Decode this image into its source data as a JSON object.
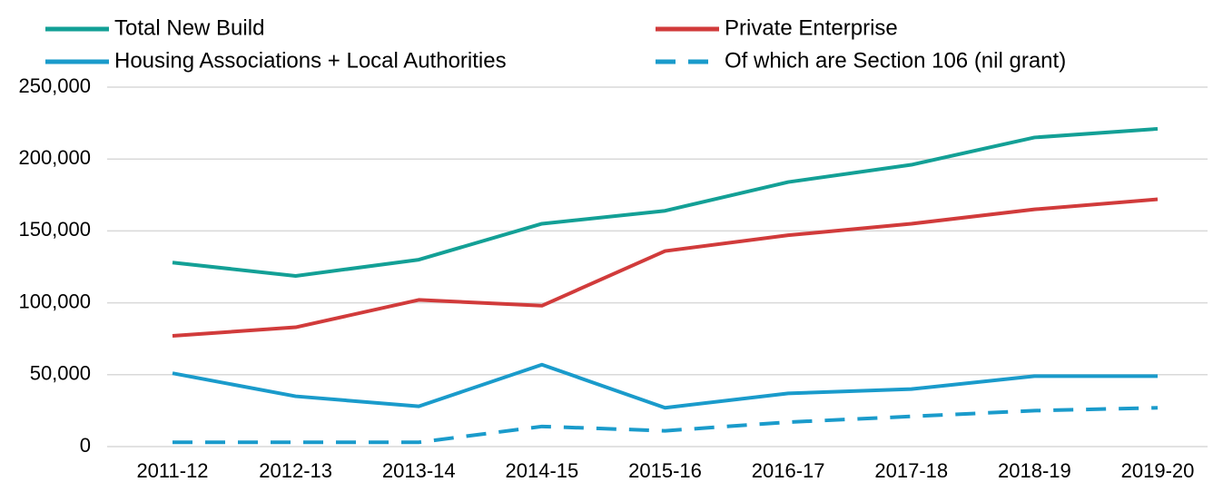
{
  "chart_data": {
    "type": "line",
    "categories": [
      "2011-12",
      "2012-13",
      "2013-14",
      "2014-15",
      "2015-16",
      "2016-17",
      "2017-18",
      "2018-19",
      "2019-20"
    ],
    "series": [
      {
        "name": "Total New Build",
        "color": "#13a096",
        "dashed": false,
        "values": [
          128000,
          118700,
          130000,
          155000,
          164000,
          184000,
          196000,
          215000,
          221000
        ]
      },
      {
        "name": "Private Enterprise",
        "color": "#d13b3b",
        "dashed": false,
        "values": [
          77000,
          83000,
          102000,
          98000,
          136000,
          147000,
          155000,
          165000,
          172000
        ]
      },
      {
        "name": "Housing Associations + Local Authorities",
        "color": "#1a9bcb",
        "dashed": false,
        "values": [
          51000,
          35000,
          28000,
          57000,
          27000,
          37000,
          40000,
          49000,
          49000
        ]
      },
      {
        "name": "Of which are Section 106 (nil grant)",
        "color": "#1a9bcb",
        "dashed": true,
        "values": [
          3000,
          3000,
          3000,
          14000,
          11000,
          17000,
          21000,
          25000,
          27000
        ]
      }
    ],
    "ylim": [
      0,
      250000
    ],
    "yticks": [
      0,
      {
        "value": 50000,
        "label": "50,000"
      },
      {
        "value": 100000,
        "label": "100,000"
      },
      {
        "value": 150000,
        "label": "150,000"
      },
      {
        "value": 200000,
        "label": "200,000"
      },
      {
        "value": 250000,
        "label": "250,000"
      }
    ],
    "grid": true
  }
}
